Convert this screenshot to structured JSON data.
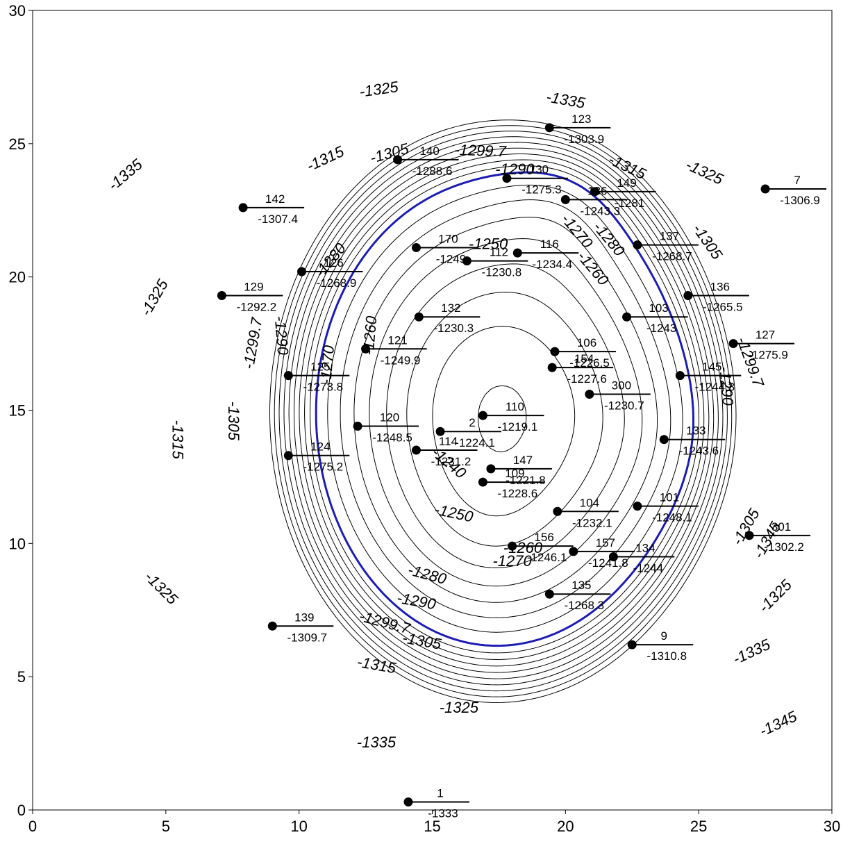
{
  "chart_data": {
    "type": "contour",
    "title": "",
    "xlabel": "",
    "ylabel": "",
    "xlim": [
      0,
      30
    ],
    "ylim": [
      0,
      30
    ],
    "x_ticks": [
      0,
      5,
      10,
      15,
      20,
      25,
      30
    ],
    "y_ticks": [
      0,
      5,
      10,
      15,
      20,
      25,
      30
    ],
    "highlight_contour": {
      "level": -1299.7,
      "color": "#1c1cb4",
      "style": "dashed"
    },
    "contour_levels": [
      -1345,
      -1340,
      -1335,
      -1330,
      -1325,
      -1320,
      -1315,
      -1310,
      -1305,
      -1299.7,
      -1290,
      -1280,
      -1270,
      -1260,
      -1250,
      -1240,
      -1230,
      -1220
    ],
    "wells": [
      {
        "name": "123",
        "x": 19.4,
        "y": 25.6,
        "value": "-1303.9"
      },
      {
        "name": "140",
        "x": 13.7,
        "y": 24.4,
        "value": "-1288.6"
      },
      {
        "name": "130",
        "x": 17.8,
        "y": 23.7,
        "value": "-1275.3"
      },
      {
        "name": "136",
        "x": 20.0,
        "y": 22.9,
        "value": "-1243.3"
      },
      {
        "name": "149",
        "x": 21.1,
        "y": 23.2,
        "value": "-1281"
      },
      {
        "name": "7",
        "x": 27.5,
        "y": 23.3,
        "value": "-1306.9"
      },
      {
        "name": "142",
        "x": 7.9,
        "y": 22.6,
        "value": "-1307.4"
      },
      {
        "name": "137",
        "x": 22.7,
        "y": 21.2,
        "value": "-1268.7"
      },
      {
        "name": "170",
        "x": 14.4,
        "y": 21.1,
        "value": "-1249"
      },
      {
        "name": "112",
        "x": 16.3,
        "y": 20.6,
        "value": "-1230.8"
      },
      {
        "name": "116",
        "x": 18.2,
        "y": 20.9,
        "value": "-1234.4"
      },
      {
        "name": "126",
        "x": 10.1,
        "y": 20.2,
        "value": "-1268.9"
      },
      {
        "name": "129",
        "x": 7.1,
        "y": 19.3,
        "value": "-1292.2"
      },
      {
        "name": "136",
        "x": 24.6,
        "y": 19.3,
        "value": "-1265.5"
      },
      {
        "name": "132",
        "x": 14.5,
        "y": 18.5,
        "value": "-1230.3"
      },
      {
        "name": "103",
        "x": 22.3,
        "y": 18.5,
        "value": "-1243"
      },
      {
        "name": "127",
        "x": 26.3,
        "y": 17.5,
        "value": "-1275.9"
      },
      {
        "name": "121",
        "x": 12.5,
        "y": 17.3,
        "value": "-1249.9"
      },
      {
        "name": "106",
        "x": 19.6,
        "y": 17.2,
        "value": "-1226.5"
      },
      {
        "name": "154",
        "x": 19.5,
        "y": 16.6,
        "value": "-1227.6"
      },
      {
        "name": "125",
        "x": 9.6,
        "y": 16.3,
        "value": "-1273.8"
      },
      {
        "name": "145",
        "x": 24.3,
        "y": 16.3,
        "value": "-1244.3"
      },
      {
        "name": "300",
        "x": 20.9,
        "y": 15.6,
        "value": "-1230.7"
      },
      {
        "name": "110",
        "x": 16.9,
        "y": 14.8,
        "value": "-1219.1"
      },
      {
        "name": "120",
        "x": 12.2,
        "y": 14.4,
        "value": "-1248.5"
      },
      {
        "name": "2",
        "x": 15.3,
        "y": 14.2,
        "value": "-1224.1"
      },
      {
        "name": "114",
        "x": 14.4,
        "y": 13.5,
        "value": "-1231.2"
      },
      {
        "name": "133",
        "x": 23.7,
        "y": 13.9,
        "value": "-1243.6"
      },
      {
        "name": "124",
        "x": 9.6,
        "y": 13.3,
        "value": "-1275.2"
      },
      {
        "name": "147",
        "x": 17.2,
        "y": 12.8,
        "value": "-1221.8"
      },
      {
        "name": "109",
        "x": 16.9,
        "y": 12.3,
        "value": "-1228.6"
      },
      {
        "name": "101",
        "x": 22.7,
        "y": 11.4,
        "value": "-1248.1"
      },
      {
        "name": "104",
        "x": 19.7,
        "y": 11.2,
        "value": "-1232.1"
      },
      {
        "name": "301",
        "x": 26.9,
        "y": 10.3,
        "value": "-1302.2"
      },
      {
        "name": "156",
        "x": 18.0,
        "y": 9.9,
        "value": "-1246.1"
      },
      {
        "name": "157",
        "x": 20.3,
        "y": 9.7,
        "value": "-1241.8"
      },
      {
        "name": "134",
        "x": 21.8,
        "y": 9.5,
        "value": "-1244"
      },
      {
        "name": "135",
        "x": 19.4,
        "y": 8.1,
        "value": "-1268.3"
      },
      {
        "name": "139",
        "x": 9.0,
        "y": 6.9,
        "value": "-1309.7"
      },
      {
        "name": "9",
        "x": 22.5,
        "y": 6.2,
        "value": "-1310.8"
      },
      {
        "name": "1",
        "x": 14.1,
        "y": 0.3,
        "value": "-1333"
      }
    ],
    "contour_labels": [
      {
        "text": "-1325",
        "x": 13.0,
        "y": 27.0,
        "rot": -8
      },
      {
        "text": "-1335",
        "x": 20.0,
        "y": 26.6,
        "rot": 10
      },
      {
        "text": "-1335",
        "x": 3.5,
        "y": 23.8,
        "rot": -40
      },
      {
        "text": "-1315",
        "x": 11.0,
        "y": 24.4,
        "rot": -25
      },
      {
        "text": "-1305",
        "x": 13.4,
        "y": 24.6,
        "rot": -15
      },
      {
        "text": "-1299.7",
        "x": 16.8,
        "y": 24.7,
        "rot": 2
      },
      {
        "text": "-1290",
        "x": 18.1,
        "y": 24.0,
        "rot": 0
      },
      {
        "text": "-1315",
        "x": 22.3,
        "y": 24.1,
        "rot": 25
      },
      {
        "text": "-1325",
        "x": 25.2,
        "y": 23.9,
        "rot": 25
      },
      {
        "text": "-1270",
        "x": 20.4,
        "y": 21.7,
        "rot": 50
      },
      {
        "text": "-1280",
        "x": 21.6,
        "y": 21.4,
        "rot": 50
      },
      {
        "text": "-1305",
        "x": 25.3,
        "y": 21.3,
        "rot": 55
      },
      {
        "text": "-1250",
        "x": 17.1,
        "y": 21.2,
        "rot": 0
      },
      {
        "text": "-1260",
        "x": 21.0,
        "y": 20.3,
        "rot": 50
      },
      {
        "text": "-1280",
        "x": 11.2,
        "y": 20.6,
        "rot": -50
      },
      {
        "text": "-1325",
        "x": 4.6,
        "y": 19.2,
        "rot": -60
      },
      {
        "text": "-1260",
        "x": 12.7,
        "y": 17.8,
        "rot": -85
      },
      {
        "text": "-1299.7",
        "x": 8.3,
        "y": 17.5,
        "rot": -80
      },
      {
        "text": "-1290",
        "x": 9.3,
        "y": 17.8,
        "rot": 85
      },
      {
        "text": "-1270",
        "x": 11.1,
        "y": 16.7,
        "rot": -85
      },
      {
        "text": "-1299.7",
        "x": 26.9,
        "y": 16.8,
        "rot": 70
      },
      {
        "text": "-1290",
        "x": 26.0,
        "y": 15.9,
        "rot": 85
      },
      {
        "text": "-1305",
        "x": 7.5,
        "y": 14.6,
        "rot": 90
      },
      {
        "text": "-1315",
        "x": 5.4,
        "y": 13.9,
        "rot": 90
      },
      {
        "text": "-1240",
        "x": 15.6,
        "y": 13.0,
        "rot": 40
      },
      {
        "text": "-1250",
        "x": 15.8,
        "y": 11.1,
        "rot": 12
      },
      {
        "text": "-1305",
        "x": 26.8,
        "y": 10.6,
        "rot": -60
      },
      {
        "text": "-1345",
        "x": 27.6,
        "y": 10.1,
        "rot": -60
      },
      {
        "text": "-1260",
        "x": 18.4,
        "y": 9.8,
        "rot": 0
      },
      {
        "text": "-1270",
        "x": 18.0,
        "y": 9.3,
        "rot": 0
      },
      {
        "text": "-1280",
        "x": 14.8,
        "y": 8.8,
        "rot": 15
      },
      {
        "text": "-1290",
        "x": 14.4,
        "y": 7.8,
        "rot": 10
      },
      {
        "text": "-1299.7",
        "x": 13.2,
        "y": 7.0,
        "rot": 15
      },
      {
        "text": "-1305",
        "x": 14.6,
        "y": 6.3,
        "rot": 10
      },
      {
        "text": "-1325",
        "x": 4.8,
        "y": 8.3,
        "rot": 45
      },
      {
        "text": "-1325",
        "x": 27.9,
        "y": 8.0,
        "rot": -45
      },
      {
        "text": "-1315",
        "x": 12.9,
        "y": 5.4,
        "rot": 10
      },
      {
        "text": "-1335",
        "x": 27.0,
        "y": 5.9,
        "rot": -25
      },
      {
        "text": "-1325",
        "x": 16.0,
        "y": 3.8,
        "rot": 0
      },
      {
        "text": "-1335",
        "x": 12.9,
        "y": 2.5,
        "rot": 0
      },
      {
        "text": "-1345",
        "x": 28.0,
        "y": 3.2,
        "rot": -25
      }
    ]
  }
}
